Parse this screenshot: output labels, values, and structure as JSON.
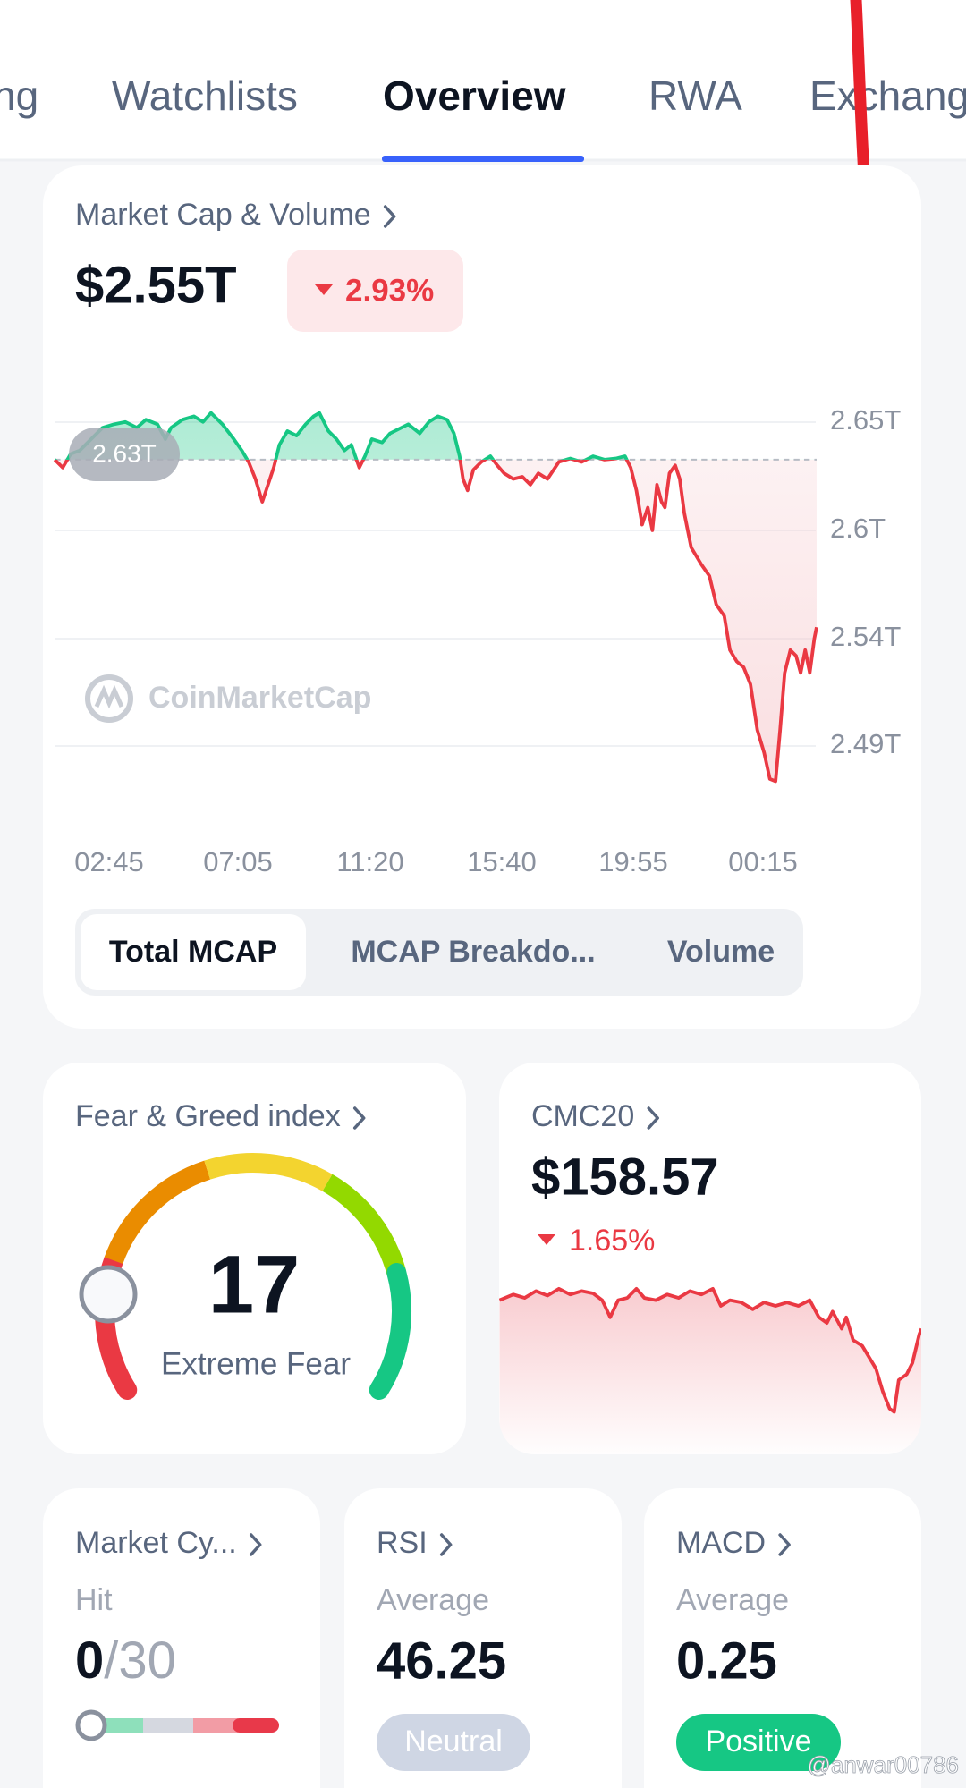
{
  "tabs": [
    "ng",
    "Watchlists",
    "Overview",
    "RWA",
    "Exchang"
  ],
  "market_cap": {
    "title": "Market Cap & Volume",
    "value": "$2.55T",
    "change": "2.93%",
    "current_label": "2.63T",
    "y_labels": [
      "2.65T",
      "2.6T",
      "2.54T",
      "2.49T"
    ],
    "x_labels": [
      "02:45",
      "07:05",
      "11:20",
      "15:40",
      "19:55",
      "00:15"
    ],
    "watermark": "CoinMarketCap",
    "segments": [
      "Total MCAP",
      "MCAP Breakdo...",
      "Volume"
    ]
  },
  "fear_greed": {
    "title": "Fear & Greed index",
    "value": "17",
    "label": "Extreme Fear"
  },
  "cmc20": {
    "title": "CMC20",
    "value": "$158.57",
    "change": "1.65%"
  },
  "market_cycle": {
    "title": "Market Cy...",
    "subtitle": "Hit",
    "value": "0",
    "total": "/30"
  },
  "rsi": {
    "title": "RSI",
    "subtitle": "Average",
    "value": "46.25",
    "status": "Neutral"
  },
  "macd": {
    "title": "MACD",
    "subtitle": "Average",
    "value": "0.25",
    "status": "Positive"
  },
  "watermark": "@anwar00786"
}
